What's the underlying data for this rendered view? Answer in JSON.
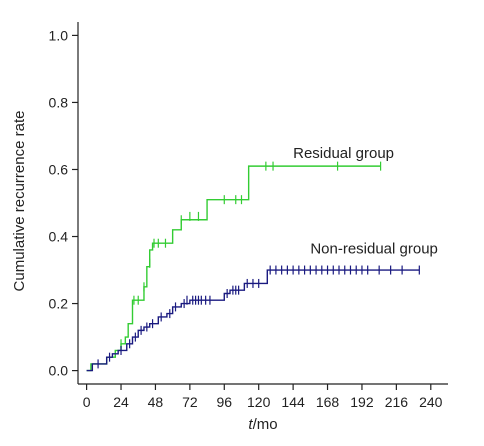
{
  "chart_data": {
    "type": "line",
    "title": "",
    "xlabel": "t/mo",
    "xlabel_italic": "t",
    "xlabel_rest": "/mo",
    "ylabel": "Cumulative recurrence rate",
    "xlim": [
      -6,
      252
    ],
    "ylim": [
      -0.04,
      1.04
    ],
    "x_ticks": [
      0,
      24,
      48,
      72,
      96,
      120,
      144,
      168,
      192,
      216,
      240
    ],
    "y_ticks": [
      0.0,
      0.2,
      0.4,
      0.6,
      0.8,
      1.0
    ],
    "x_tick_labels": [
      "0",
      "24",
      "48",
      "72",
      "96",
      "120",
      "144",
      "168",
      "192",
      "216",
      "240"
    ],
    "y_tick_labels": [
      "0.0",
      "0.2",
      "0.4",
      "0.6",
      "0.8",
      "1.0"
    ],
    "grid": false,
    "legend": "none",
    "series": [
      {
        "label": "Residual group",
        "color": "#33cc33",
        "label_x": 144,
        "label_y": 0.635,
        "steps": [
          [
            0,
            0.0
          ],
          [
            3,
            0.02
          ],
          [
            14,
            0.04
          ],
          [
            20,
            0.06
          ],
          [
            24,
            0.08
          ],
          [
            27,
            0.1
          ],
          [
            29,
            0.14
          ],
          [
            32,
            0.21
          ],
          [
            40,
            0.25
          ],
          [
            42,
            0.31
          ],
          [
            44,
            0.36
          ],
          [
            46,
            0.38
          ],
          [
            60,
            0.42
          ],
          [
            66,
            0.45
          ],
          [
            84,
            0.51
          ],
          [
            113,
            0.61
          ],
          [
            205,
            0.61
          ]
        ],
        "censored": [
          [
            24,
            0.08
          ],
          [
            33,
            0.21
          ],
          [
            36,
            0.21
          ],
          [
            40,
            0.25
          ],
          [
            44,
            0.32
          ],
          [
            47,
            0.38
          ],
          [
            50,
            0.38
          ],
          [
            55,
            0.38
          ],
          [
            66,
            0.45
          ],
          [
            72,
            0.46
          ],
          [
            78,
            0.46
          ],
          [
            96,
            0.51
          ],
          [
            104,
            0.51
          ],
          [
            108,
            0.51
          ],
          [
            125,
            0.61
          ],
          [
            130,
            0.61
          ],
          [
            175,
            0.61
          ],
          [
            205,
            0.61
          ]
        ]
      },
      {
        "label": "Non-residual group",
        "color": "#1a1a80",
        "label_x": 156,
        "label_y": 0.35,
        "steps": [
          [
            0,
            0.0
          ],
          [
            4,
            0.02
          ],
          [
            14,
            0.04
          ],
          [
            18,
            0.05
          ],
          [
            22,
            0.06
          ],
          [
            28,
            0.08
          ],
          [
            32,
            0.1
          ],
          [
            36,
            0.12
          ],
          [
            40,
            0.13
          ],
          [
            44,
            0.14
          ],
          [
            50,
            0.16
          ],
          [
            56,
            0.17
          ],
          [
            60,
            0.19
          ],
          [
            66,
            0.2
          ],
          [
            72,
            0.21
          ],
          [
            96,
            0.23
          ],
          [
            100,
            0.24
          ],
          [
            110,
            0.26
          ],
          [
            126,
            0.3
          ],
          [
            232,
            0.3
          ]
        ],
        "censored": [
          [
            8,
            0.02
          ],
          [
            16,
            0.04
          ],
          [
            24,
            0.06
          ],
          [
            30,
            0.08
          ],
          [
            34,
            0.1
          ],
          [
            38,
            0.12
          ],
          [
            42,
            0.13
          ],
          [
            46,
            0.14
          ],
          [
            52,
            0.16
          ],
          [
            58,
            0.17
          ],
          [
            62,
            0.19
          ],
          [
            68,
            0.2
          ],
          [
            70,
            0.21
          ],
          [
            74,
            0.21
          ],
          [
            76,
            0.21
          ],
          [
            78,
            0.21
          ],
          [
            80,
            0.21
          ],
          [
            83,
            0.21
          ],
          [
            86,
            0.21
          ],
          [
            98,
            0.23
          ],
          [
            102,
            0.24
          ],
          [
            104,
            0.24
          ],
          [
            106,
            0.24
          ],
          [
            112,
            0.26
          ],
          [
            116,
            0.26
          ],
          [
            120,
            0.26
          ],
          [
            128,
            0.3
          ],
          [
            132,
            0.3
          ],
          [
            136,
            0.3
          ],
          [
            140,
            0.3
          ],
          [
            144,
            0.3
          ],
          [
            148,
            0.3
          ],
          [
            152,
            0.3
          ],
          [
            156,
            0.3
          ],
          [
            160,
            0.3
          ],
          [
            164,
            0.3
          ],
          [
            168,
            0.3
          ],
          [
            172,
            0.3
          ],
          [
            176,
            0.3
          ],
          [
            180,
            0.3
          ],
          [
            184,
            0.3
          ],
          [
            188,
            0.3
          ],
          [
            192,
            0.3
          ],
          [
            196,
            0.3
          ],
          [
            204,
            0.3
          ],
          [
            212,
            0.3
          ],
          [
            220,
            0.3
          ],
          [
            232,
            0.3
          ]
        ]
      }
    ]
  }
}
